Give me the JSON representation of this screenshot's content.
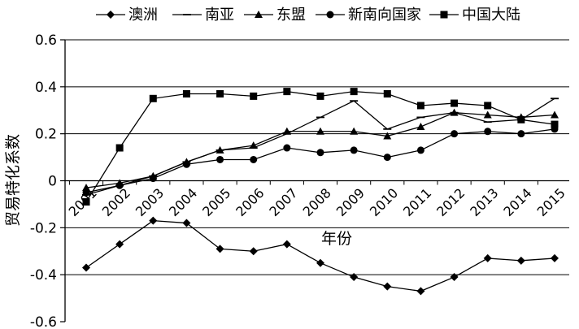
{
  "chart_data": {
    "type": "line",
    "title": "",
    "xlabel": "年份",
    "ylabel": "贸易特化系数",
    "ylim": [
      -0.6,
      0.6
    ],
    "yticks": [
      "0.6",
      "0.4",
      "0.2",
      "0",
      "-0.2",
      "-0.4",
      "-0.6"
    ],
    "grid": "horizontal",
    "legend_position": "top",
    "categories": [
      "2001",
      "2002",
      "2003",
      "2004",
      "2005",
      "2006",
      "2007",
      "2008",
      "2009",
      "2010",
      "2011",
      "2012",
      "2013",
      "2014",
      "2015"
    ],
    "series": [
      {
        "name": "澳洲",
        "marker": "diamond",
        "values": [
          -0.37,
          -0.27,
          -0.17,
          -0.18,
          -0.29,
          -0.3,
          -0.27,
          -0.35,
          -0.41,
          -0.45,
          -0.47,
          -0.41,
          -0.33,
          -0.34,
          -0.33
        ]
      },
      {
        "name": "南亚",
        "marker": "dash",
        "values": [
          -0.06,
          -0.02,
          0.02,
          0.08,
          0.13,
          0.14,
          0.2,
          0.27,
          0.34,
          0.22,
          0.27,
          0.29,
          0.25,
          0.26,
          0.35
        ]
      },
      {
        "name": "东盟",
        "marker": "triangle",
        "values": [
          -0.03,
          -0.01,
          0.02,
          0.08,
          0.13,
          0.15,
          0.21,
          0.21,
          0.21,
          0.19,
          0.23,
          0.29,
          0.28,
          0.27,
          0.28
        ]
      },
      {
        "name": "新南向国家",
        "marker": "circle",
        "values": [
          -0.05,
          -0.02,
          0.01,
          0.07,
          0.09,
          0.09,
          0.14,
          0.12,
          0.13,
          0.1,
          0.13,
          0.2,
          0.21,
          0.2,
          0.22
        ]
      },
      {
        "name": "中国大陆",
        "marker": "square",
        "values": [
          -0.09,
          0.14,
          0.35,
          0.37,
          0.37,
          0.36,
          0.38,
          0.36,
          0.38,
          0.37,
          0.32,
          0.33,
          0.32,
          0.26,
          0.24
        ]
      }
    ],
    "extra_series_points": {
      "南亚": {
        "comment_free": true
      }
    }
  }
}
